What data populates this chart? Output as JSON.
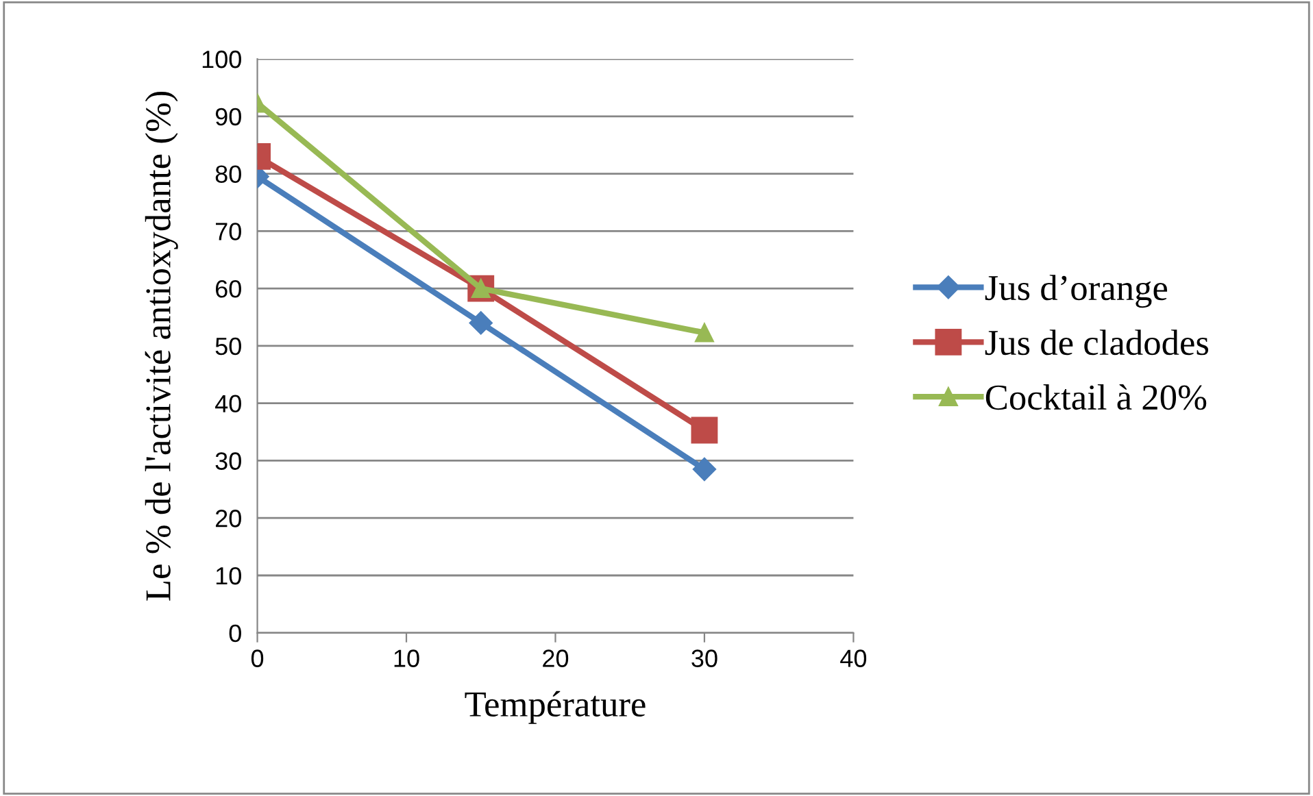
{
  "chart_data": {
    "type": "line",
    "xlabel": "Température",
    "ylabel": "Le % de l'activité antioxydante (%)",
    "x": [
      0,
      15,
      30
    ],
    "series": [
      {
        "name": "Jus d’orange",
        "color": "#4a7ebb",
        "marker": "diamond",
        "values": [
          79.5,
          54,
          28.5
        ]
      },
      {
        "name": "Jus de cladodes",
        "color": "#be4b48",
        "marker": "square",
        "values": [
          83,
          60,
          35.3
        ]
      },
      {
        "name": "Cocktail à 20%",
        "color": "#98b954",
        "marker": "triangle",
        "values": [
          92.3,
          60,
          52.3
        ]
      }
    ],
    "xlim": [
      0,
      40
    ],
    "xticks": [
      0,
      10,
      20,
      30,
      40
    ],
    "ylim": [
      0,
      100
    ],
    "yticks": [
      0,
      10,
      20,
      30,
      40,
      50,
      60,
      70,
      80,
      90,
      100
    ],
    "grid": "y",
    "legend": "right",
    "line_style": "solid"
  }
}
